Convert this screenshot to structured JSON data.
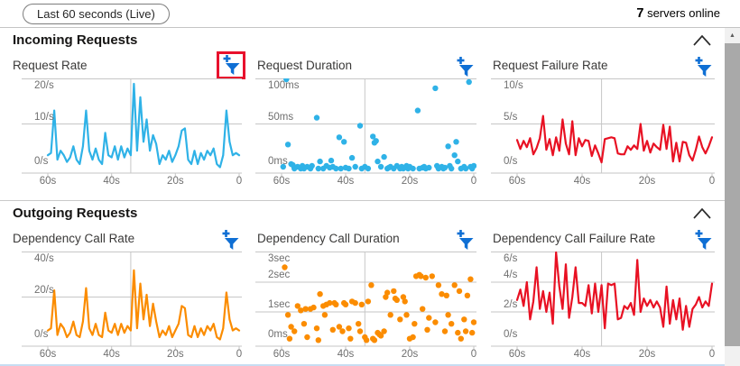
{
  "topbar": {
    "time_range_label": "Last 60 seconds (Live)",
    "servers_count": "7",
    "servers_label": " servers online"
  },
  "sections": [
    {
      "title": "Incoming Requests"
    },
    {
      "title": "Outgoing Requests"
    }
  ],
  "colors": {
    "blue": "#2fb2e7",
    "orange": "#fb8c00",
    "red": "#e81123",
    "icon_blue": "#0f6fd4",
    "highlight_red": "#e8112d",
    "grid": "#c6c6c6",
    "axis_text": "#6f6f6f"
  },
  "chart_data": [
    {
      "section": "Incoming Requests",
      "title": "Request Rate",
      "type": "line",
      "color_key": "blue",
      "ylim": [
        0,
        20
      ],
      "x_range_seconds": [
        60,
        0
      ],
      "y_ticks": [
        {
          "label": "0/s",
          "value": 0
        },
        {
          "label": "10/s",
          "value": 10
        },
        {
          "label": "20/s",
          "value": 20
        }
      ],
      "gridlines": [
        10
      ],
      "v_gridlines": [
        34
      ],
      "x_ticks": [
        "60s",
        "40s",
        "20s",
        "0"
      ],
      "filter_highlighted": true,
      "values": [
        3,
        3.5,
        13,
        2,
        4,
        3,
        1.5,
        2.5,
        5,
        2,
        1,
        5,
        13,
        4,
        2,
        4.5,
        2,
        1,
        8,
        3,
        2.5,
        5,
        2,
        5,
        2.5,
        4.5,
        3,
        19,
        4,
        16,
        6,
        11,
        4,
        7.5,
        5.5,
        1,
        3,
        2,
        4,
        1.5,
        3,
        5,
        8.5,
        9,
        2,
        1,
        4,
        1,
        3.5,
        2,
        4,
        3,
        4.5,
        1,
        0.3,
        3,
        13,
        6,
        3,
        3.5,
        3
      ]
    },
    {
      "section": "Incoming Requests",
      "title": "Request Duration",
      "type": "scatter",
      "color_key": "blue",
      "ylim": [
        0,
        100
      ],
      "x_range_seconds": [
        60,
        0
      ],
      "y_ticks": [
        {
          "label": "0ms",
          "value": 0
        },
        {
          "label": "50ms",
          "value": 50
        },
        {
          "label": "100ms",
          "value": 100
        }
      ],
      "gridlines": [
        50
      ],
      "v_gridlines": [
        34
      ],
      "x_ticks": [
        "60s",
        "40s",
        "20s",
        "0"
      ],
      "filter_highlighted": false,
      "points": [
        [
          59.5,
          2
        ],
        [
          58.5,
          100
        ],
        [
          58,
          27
        ],
        [
          57,
          5
        ],
        [
          56.5,
          4
        ],
        [
          56,
          0
        ],
        [
          55,
          2
        ],
        [
          54,
          0
        ],
        [
          53.5,
          3
        ],
        [
          53,
          0
        ],
        [
          52,
          2
        ],
        [
          51,
          0
        ],
        [
          50.5,
          3
        ],
        [
          49,
          57
        ],
        [
          48.5,
          0
        ],
        [
          48,
          8
        ],
        [
          47,
          0
        ],
        [
          46,
          3
        ],
        [
          45,
          1
        ],
        [
          44.5,
          9
        ],
        [
          44,
          2
        ],
        [
          43,
          0
        ],
        [
          42,
          35
        ],
        [
          41.5,
          0
        ],
        [
          40.5,
          30
        ],
        [
          40,
          1
        ],
        [
          39,
          0
        ],
        [
          38,
          12
        ],
        [
          37,
          2
        ],
        [
          35.5,
          48
        ],
        [
          35,
          0
        ],
        [
          34,
          2
        ],
        [
          33,
          0
        ],
        [
          31.5,
          36
        ],
        [
          31,
          29
        ],
        [
          30.5,
          31
        ],
        [
          30,
          8
        ],
        [
          29,
          2
        ],
        [
          28,
          13
        ],
        [
          27,
          0
        ],
        [
          26.5,
          1
        ],
        [
          26,
          2
        ],
        [
          25,
          0
        ],
        [
          24,
          3
        ],
        [
          23,
          0
        ],
        [
          22.5,
          2
        ],
        [
          22,
          0
        ],
        [
          21,
          3
        ],
        [
          20.5,
          0
        ],
        [
          20,
          2
        ],
        [
          19,
          0
        ],
        [
          17.5,
          65
        ],
        [
          17,
          0
        ],
        [
          16,
          1
        ],
        [
          15.5,
          2
        ],
        [
          15,
          0
        ],
        [
          14,
          1
        ],
        [
          12,
          90
        ],
        [
          11.5,
          3
        ],
        [
          11,
          0
        ],
        [
          10,
          2
        ],
        [
          9.5,
          0
        ],
        [
          9,
          1
        ],
        [
          8,
          25
        ],
        [
          7.5,
          3
        ],
        [
          7,
          0
        ],
        [
          6,
          15
        ],
        [
          5.5,
          30
        ],
        [
          5,
          8
        ],
        [
          4,
          0
        ],
        [
          3,
          2
        ],
        [
          2.5,
          0
        ],
        [
          1.5,
          97
        ],
        [
          1,
          2
        ],
        [
          0.5,
          0
        ],
        [
          0,
          3
        ]
      ]
    },
    {
      "section": "Incoming Requests",
      "title": "Request Failure Rate",
      "type": "line",
      "color_key": "red",
      "ylim": [
        0,
        10
      ],
      "x_range_seconds": [
        60,
        0
      ],
      "y_ticks": [
        {
          "label": "0/s",
          "value": 0
        },
        {
          "label": "5/s",
          "value": 5
        },
        {
          "label": "10/s",
          "value": 10
        }
      ],
      "gridlines": [
        5
      ],
      "v_gridlines": [
        34
      ],
      "x_ticks": [
        "60s",
        "40s",
        "20s",
        "0"
      ],
      "filter_highlighted": false,
      "values": [
        3.2,
        2.2,
        3.1,
        2.4,
        3.4,
        1.6,
        2.3,
        3.4,
        5.9,
        2.1,
        3.3,
        1.5,
        3.5,
        2.0,
        5.5,
        2.8,
        1.6,
        5.3,
        1.5,
        3.4,
        2.5,
        3.2,
        3.1,
        1.4,
        2.6,
        1.7,
        0.7,
        3.3,
        3.4,
        3.5,
        3.4,
        1.7,
        1.6,
        1.6,
        2.5,
        2.1,
        2.6,
        2.2,
        5.0,
        2.0,
        3.1,
        1.8,
        2.8,
        2.4,
        2.1,
        4.9,
        2.2,
        4.7,
        0.8,
        2.9,
        0.8,
        3.0,
        2.9,
        1.5,
        0.9,
        2.1,
        3.6,
        2.4,
        1.7,
        2.5,
        3.5
      ]
    },
    {
      "section": "Outgoing Requests",
      "title": "Dependency Call Rate",
      "type": "line",
      "color_key": "orange",
      "ylim": [
        0,
        40
      ],
      "x_range_seconds": [
        60,
        0
      ],
      "y_ticks": [
        {
          "label": "0/s",
          "value": 0
        },
        {
          "label": "20/s",
          "value": 20
        },
        {
          "label": "40/s",
          "value": 40
        }
      ],
      "gridlines": [
        20
      ],
      "v_gridlines": [
        34
      ],
      "x_ticks": [
        "60s",
        "40s",
        "20s",
        "0"
      ],
      "filter_highlighted": false,
      "values": [
        5,
        6,
        23,
        3,
        8,
        6,
        2,
        4,
        9,
        3,
        2,
        9,
        24,
        6,
        3,
        8,
        3,
        2,
        13,
        5,
        4,
        8,
        3,
        8,
        4,
        7,
        5,
        32,
        6,
        26,
        10,
        21,
        7,
        17,
        9,
        2,
        5,
        3,
        7,
        2,
        5,
        8,
        16,
        15,
        3,
        2,
        7,
        2,
        6,
        3,
        7,
        5,
        8,
        2,
        1,
        6,
        22,
        10,
        5,
        6,
        5
      ]
    },
    {
      "section": "Outgoing Requests",
      "title": "Dependency Call Duration",
      "type": "scatter",
      "color_key": "orange",
      "ylim": [
        0,
        3
      ],
      "x_range_seconds": [
        60,
        0
      ],
      "y_ticks": [
        {
          "label": "0ms",
          "value": 0
        },
        {
          "label": "1sec",
          "value": 1
        },
        {
          "label": "2sec",
          "value": 2
        },
        {
          "label": "3sec",
          "value": 3
        }
      ],
      "gridlines": [
        1,
        2
      ],
      "v_gridlines": [
        34
      ],
      "x_ticks": [
        "60s",
        "40s",
        "20s",
        "0"
      ],
      "filter_highlighted": false,
      "points": [
        [
          59,
          2.5
        ],
        [
          58,
          0.9
        ],
        [
          57.5,
          0.1
        ],
        [
          57,
          0.5
        ],
        [
          56,
          0.35
        ],
        [
          55,
          1.2
        ],
        [
          54,
          1.05
        ],
        [
          53,
          0.6
        ],
        [
          52.5,
          1.1
        ],
        [
          52,
          0.15
        ],
        [
          51,
          1.1
        ],
        [
          50,
          1.15
        ],
        [
          49,
          0.45
        ],
        [
          48.5,
          0.05
        ],
        [
          48,
          1.6
        ],
        [
          47,
          1.2
        ],
        [
          46.5,
          0.9
        ],
        [
          46,
          1.25
        ],
        [
          45,
          1.3
        ],
        [
          44,
          0.4
        ],
        [
          43.5,
          1.3
        ],
        [
          43,
          1.25
        ],
        [
          42,
          0.5
        ],
        [
          41,
          0.35
        ],
        [
          40.5,
          1.3
        ],
        [
          40,
          1.25
        ],
        [
          39,
          0.45
        ],
        [
          38.5,
          0.1
        ],
        [
          38,
          1.35
        ],
        [
          37,
          1.3
        ],
        [
          36,
          0.6
        ],
        [
          35.5,
          0.35
        ],
        [
          35,
          1.25
        ],
        [
          34,
          0.15
        ],
        [
          33.5,
          0.05
        ],
        [
          33,
          1.35
        ],
        [
          32,
          1.9
        ],
        [
          31.5,
          0.1
        ],
        [
          31,
          0.05
        ],
        [
          30,
          0.3
        ],
        [
          29.5,
          0.25
        ],
        [
          29,
          0.2
        ],
        [
          28,
          0.35
        ],
        [
          27.5,
          1.5
        ],
        [
          27,
          1.65
        ],
        [
          26,
          0.9
        ],
        [
          25,
          1.7
        ],
        [
          24.5,
          1.45
        ],
        [
          24,
          1.4
        ],
        [
          23,
          0.75
        ],
        [
          22,
          1.5
        ],
        [
          21.5,
          1.35
        ],
        [
          21,
          0.9
        ],
        [
          20,
          0.1
        ],
        [
          19,
          0.15
        ],
        [
          18.5,
          0.6
        ],
        [
          18,
          2.2
        ],
        [
          17,
          2.25
        ],
        [
          16.5,
          2.2
        ],
        [
          16,
          1.1
        ],
        [
          15,
          2.15
        ],
        [
          14.5,
          0.4
        ],
        [
          14,
          0.8
        ],
        [
          13,
          2.2
        ],
        [
          12,
          0.65
        ],
        [
          11,
          1.9
        ],
        [
          10,
          1.6
        ],
        [
          9,
          0.35
        ],
        [
          8.5,
          1.55
        ],
        [
          8,
          0.9
        ],
        [
          7,
          0.6
        ],
        [
          6,
          1.9
        ],
        [
          5,
          0.3
        ],
        [
          4.5,
          1.7
        ],
        [
          4,
          0.1
        ],
        [
          3,
          0.75
        ],
        [
          2.5,
          0.35
        ],
        [
          2,
          1.55
        ],
        [
          1,
          2.1
        ],
        [
          0.5,
          0.3
        ],
        [
          0,
          0.65
        ]
      ]
    },
    {
      "section": "Outgoing Requests",
      "title": "Dependency Call Failure Rate",
      "type": "line",
      "color_key": "red",
      "ylim": [
        0,
        6
      ],
      "x_range_seconds": [
        60,
        0
      ],
      "y_ticks": [
        {
          "label": "0/s",
          "value": 0
        },
        {
          "label": "2/s",
          "value": 2
        },
        {
          "label": "4/s",
          "value": 4
        },
        {
          "label": "6/s",
          "value": 6
        }
      ],
      "gridlines": [
        2,
        4
      ],
      "v_gridlines": [
        34
      ],
      "x_ticks": [
        "60s",
        "40s",
        "20s",
        "0"
      ],
      "filter_highlighted": false,
      "values": [
        2.8,
        3.5,
        2.4,
        4.0,
        1.5,
        2.7,
        5.0,
        2.2,
        3.4,
        2.0,
        3.3,
        1.2,
        6.0,
        3.7,
        2.2,
        5.2,
        1.6,
        3.0,
        5.0,
        2.6,
        2.6,
        2.4,
        3.8,
        1.9,
        3.9,
        2.0,
        3.8,
        0.9,
        3.9,
        3.8,
        3.9,
        1.5,
        1.6,
        2.4,
        2.2,
        2.6,
        1.8,
        5.5,
        2.0,
        2.9,
        2.4,
        2.8,
        2.3,
        2.7,
        2.3,
        1.0,
        3.7,
        1.2,
        2.8,
        1.5,
        2.9,
        0.8,
        2.4,
        1.0,
        2.2,
        2.5,
        3.0,
        2.3,
        2.7,
        2.4,
        3.9
      ]
    }
  ]
}
